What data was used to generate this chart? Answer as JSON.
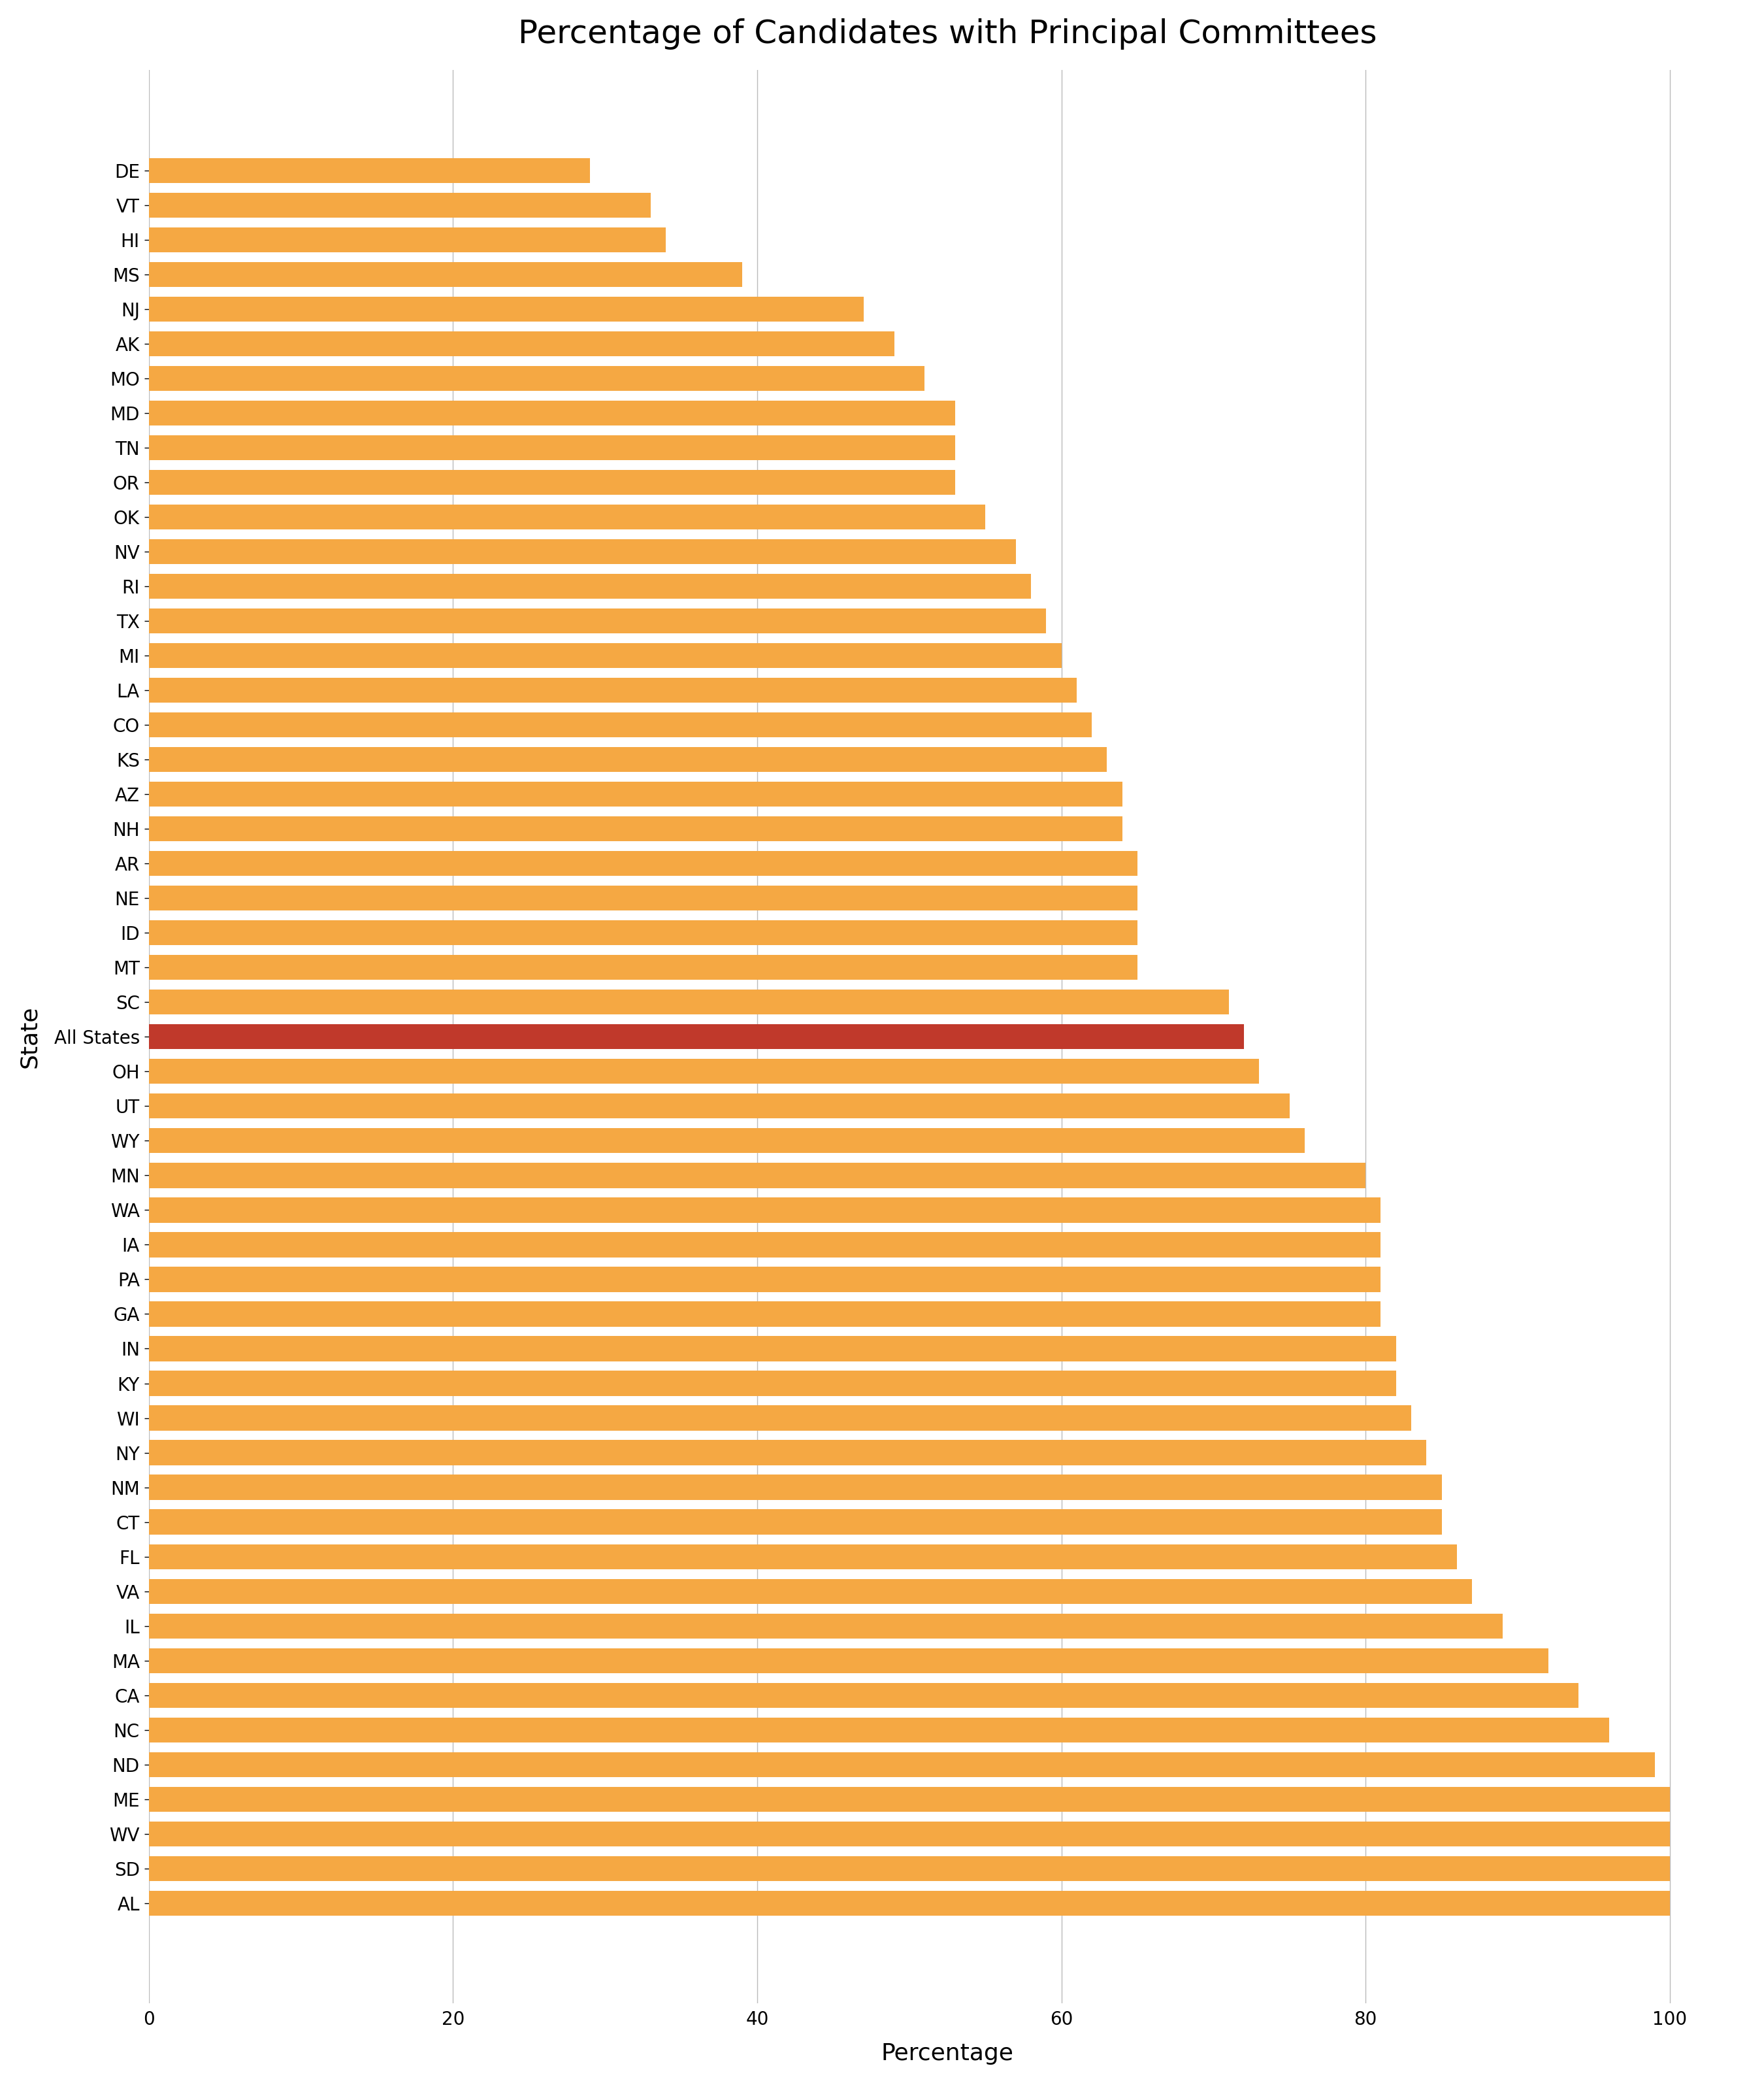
{
  "title": "Percentage of Candidates with Principal Committees",
  "xlabel": "Percentage",
  "ylabel": "State",
  "states": [
    "DE",
    "VT",
    "HI",
    "MS",
    "NJ",
    "AK",
    "MO",
    "MD",
    "TN",
    "OR",
    "OK",
    "NV",
    "RI",
    "TX",
    "MI",
    "LA",
    "CO",
    "KS",
    "AZ",
    "NH",
    "AR",
    "NE",
    "ID",
    "MT",
    "SC",
    "All States",
    "OH",
    "UT",
    "WY",
    "MN",
    "WA",
    "IA",
    "PA",
    "GA",
    "IN",
    "KY",
    "WI",
    "NY",
    "NM",
    "CT",
    "FL",
    "VA",
    "IL",
    "MA",
    "CA",
    "NC",
    "ND",
    "ME",
    "WV",
    "SD",
    "AL"
  ],
  "values": [
    29,
    33,
    34,
    39,
    47,
    49,
    51,
    53,
    53,
    53,
    55,
    57,
    58,
    59,
    60,
    61,
    62,
    63,
    64,
    64,
    65,
    65,
    65,
    65,
    71,
    72,
    73,
    75,
    76,
    80,
    81,
    81,
    81,
    81,
    82,
    82,
    83,
    84,
    85,
    85,
    86,
    87,
    89,
    92,
    94,
    96,
    99,
    100,
    100,
    100,
    100
  ],
  "bar_color": "#F5A843",
  "highlight_color": "#C0392B",
  "highlight_label": "All States",
  "xlim": [
    0,
    105
  ],
  "xticks": [
    0,
    20,
    40,
    60,
    80,
    100
  ],
  "xtick_labels": [
    "0",
    "20",
    "40",
    "60",
    "80",
    "100"
  ],
  "background_color": "#FFFFFF",
  "grid_color": "#BBBBBB",
  "title_fontsize": 36,
  "axis_label_fontsize": 26,
  "tick_fontsize": 20,
  "bar_height": 0.72
}
